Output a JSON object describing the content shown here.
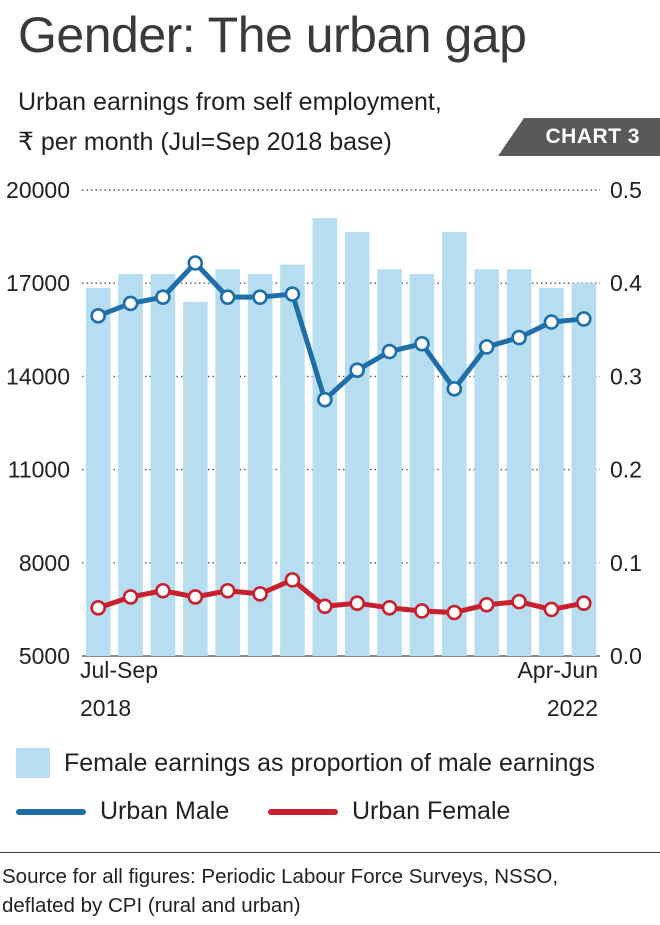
{
  "title": "Gender: The urban gap",
  "subtitle_line1": "Urban earnings from self employment,",
  "subtitle_line2": "₹ per month (Jul=Sep 2018 base)",
  "badge": "CHART 3",
  "colors": {
    "bars": "#b7def0",
    "male": "#1f6ea8",
    "female": "#c8202f",
    "grid": "#555555"
  },
  "chart_data": {
    "type": "bar",
    "left_axis": {
      "ticks": [
        "20000",
        "17000",
        "14000",
        "11000",
        "8000",
        "5000"
      ],
      "range": [
        5000,
        20000
      ]
    },
    "right_axis": {
      "ticks": [
        "0.5",
        "0.4",
        "0.3",
        "0.2",
        "0.1",
        "0.0"
      ],
      "range": [
        0,
        0.5
      ]
    },
    "x_labels": {
      "start_top": "Jul-Sep",
      "start_bottom": "2018",
      "end_top": "Apr-Jun",
      "end_bottom": "2022"
    },
    "bars": [
      0.395,
      0.41,
      0.41,
      0.38,
      0.415,
      0.41,
      0.42,
      0.47,
      0.455,
      0.415,
      0.41,
      0.455,
      0.415,
      0.415,
      0.395,
      0.4
    ],
    "series": [
      {
        "name": "Urban Male",
        "values": [
          15950,
          16350,
          16550,
          17650,
          16550,
          16550,
          16650,
          13250,
          14200,
          14800,
          15050,
          13600,
          14950,
          15250,
          15750,
          15850
        ]
      },
      {
        "name": "Urban Female",
        "values": [
          6550,
          6900,
          7100,
          6900,
          7100,
          7000,
          7450,
          6600,
          6700,
          6550,
          6450,
          6400,
          6650,
          6750,
          6500,
          6700
        ]
      }
    ]
  },
  "legend": {
    "bars_label": "Female earnings as proportion of male earnings",
    "male_label": "Urban Male",
    "female_label": "Urban Female"
  },
  "source_line1": "Source for all figures: Periodic Labour Force Surveys, NSSO,",
  "source_line2": "deflated by CPI (rural and urban)"
}
